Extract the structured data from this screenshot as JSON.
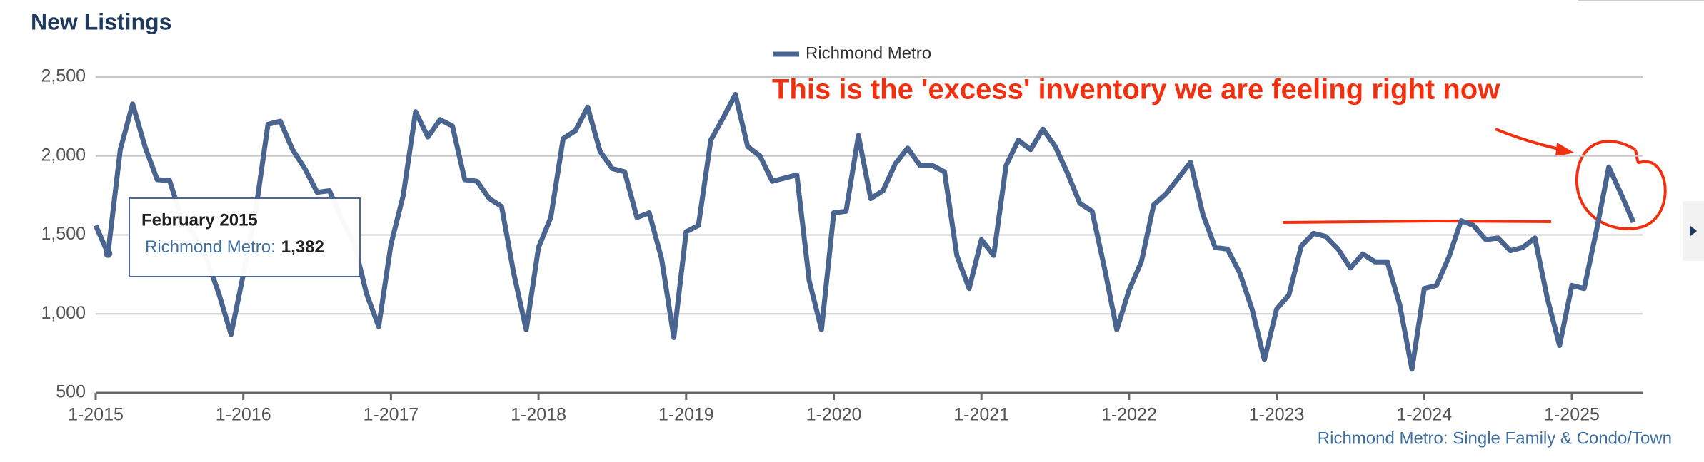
{
  "chart_data": {
    "type": "line",
    "title": "New Listings",
    "annotation": "This is the 'excess' inventory we are feeling right now",
    "footer": "Richmond Metro: Single Family & Condo/Town",
    "tooltip": {
      "title": "February 2015",
      "label": "Richmond Metro:",
      "value_label": "1,382"
    },
    "categories": [
      "1-2015",
      null,
      null,
      null,
      null,
      null,
      null,
      null,
      null,
      null,
      null,
      null,
      "1-2016",
      null,
      null,
      null,
      null,
      null,
      null,
      null,
      null,
      null,
      null,
      null,
      "1-2017",
      null,
      null,
      null,
      null,
      null,
      null,
      null,
      null,
      null,
      null,
      null,
      "1-2018",
      null,
      null,
      null,
      null,
      null,
      null,
      null,
      null,
      null,
      null,
      null,
      "1-2019",
      null,
      null,
      null,
      null,
      null,
      null,
      null,
      null,
      null,
      null,
      null,
      "1-2020",
      null,
      null,
      null,
      null,
      null,
      null,
      null,
      null,
      null,
      null,
      null,
      "1-2021",
      null,
      null,
      null,
      null,
      null,
      null,
      null,
      null,
      null,
      null,
      null,
      "1-2022",
      null,
      null,
      null,
      null,
      null,
      null,
      null,
      null,
      null,
      null,
      null,
      "1-2023",
      null,
      null,
      null,
      null,
      null,
      null,
      null,
      null,
      null,
      null,
      null,
      "1-2024",
      null,
      null,
      null,
      null,
      null,
      null,
      null,
      null,
      null,
      null,
      null,
      "1-2025",
      null,
      null,
      null,
      null,
      null
    ],
    "series": [
      {
        "name": "Richmond Metro",
        "color": "#4a6490",
        "values": [
          1560,
          1382,
          2040,
          2330,
          2060,
          1850,
          1845,
          1600,
          1500,
          1350,
          1130,
          870,
          1250,
          1650,
          2200,
          2220,
          2040,
          1920,
          1770,
          1780,
          1600,
          1450,
          1130,
          920,
          1440,
          1750,
          2280,
          2120,
          2230,
          2190,
          1850,
          1840,
          1730,
          1680,
          1250,
          900,
          1420,
          1610,
          2110,
          2160,
          2310,
          2030,
          1920,
          1900,
          1610,
          1640,
          1350,
          850,
          1520,
          1560,
          2100,
          2240,
          2390,
          2060,
          2000,
          1840,
          1860,
          1880,
          1210,
          900,
          1640,
          1650,
          2130,
          1730,
          1780,
          1950,
          2050,
          1940,
          1940,
          1900,
          1370,
          1160,
          1470,
          1370,
          1940,
          2100,
          2040,
          2170,
          2060,
          1890,
          1700,
          1650,
          1290,
          900,
          1150,
          1330,
          1690,
          1760,
          1860,
          1960,
          1630,
          1420,
          1410,
          1260,
          1030,
          710,
          1030,
          1120,
          1430,
          1510,
          1490,
          1410,
          1290,
          1380,
          1330,
          1330,
          1060,
          650,
          1160,
          1180,
          1360,
          1590,
          1560,
          1470,
          1480,
          1400,
          1420,
          1480,
          1100,
          800,
          1180,
          1160,
          1530,
          1930,
          1760,
          1580
        ]
      }
    ],
    "ylim": [
      500,
      2500
    ],
    "yticks": [
      {
        "value": 500,
        "label": "500"
      },
      {
        "value": 1000,
        "label": "1,000"
      },
      {
        "value": 1500,
        "label": "1,500"
      },
      {
        "value": 2000,
        "label": "2,000"
      },
      {
        "value": 2500,
        "label": "2,500"
      }
    ],
    "grid": true
  }
}
